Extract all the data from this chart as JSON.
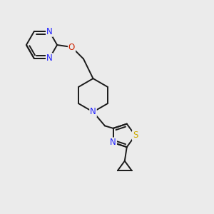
{
  "background_color": "#ebebeb",
  "bond_color": "#1a1a1a",
  "atom_colors": {
    "N": "#2020ff",
    "O": "#cc2200",
    "S": "#ccaa00",
    "C": "#1a1a1a"
  },
  "font_size": 8.5,
  "bond_width": 1.4,
  "dbo": 0.011
}
